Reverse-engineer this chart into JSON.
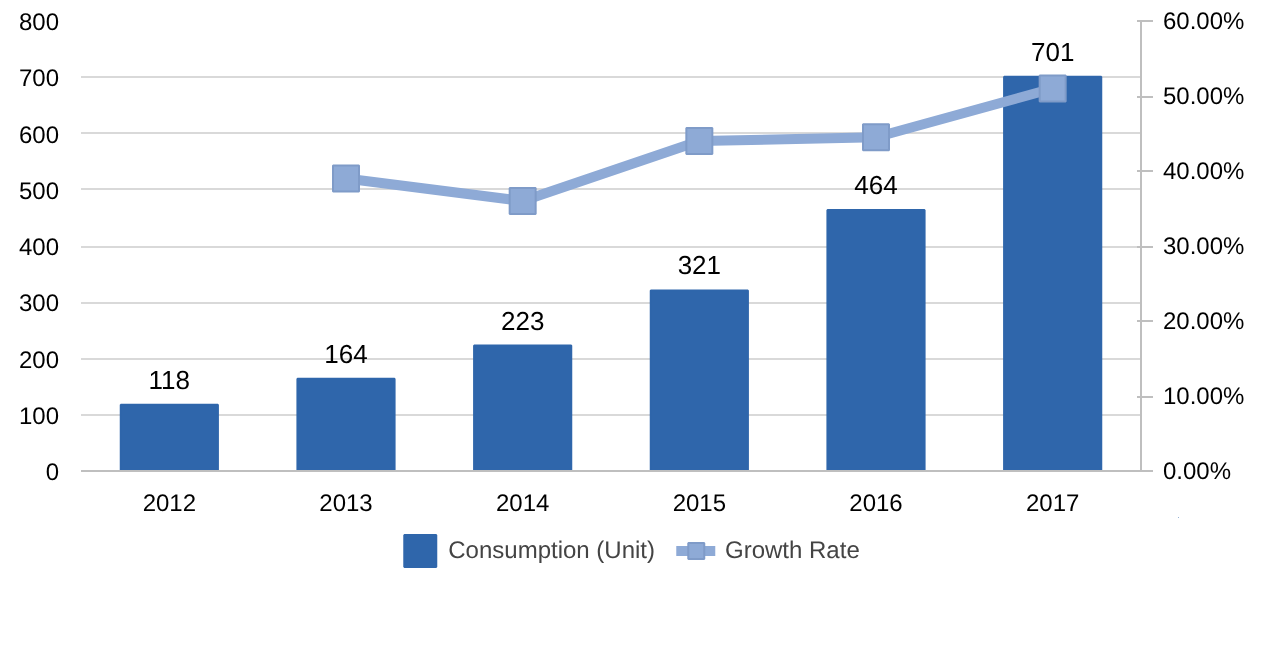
{
  "chart_data": {
    "type": "bar",
    "categories": [
      "2012",
      "2013",
      "2014",
      "2015",
      "2016",
      "2017"
    ],
    "series": [
      {
        "name": "Consumption (Unit)",
        "color": "#2f66ab",
        "values": [
          118,
          164,
          223,
          321,
          464,
          701
        ],
        "value_labels": [
          "118",
          "164",
          "223",
          "321",
          "464",
          "701"
        ]
      },
      {
        "name": "Growth Rate",
        "type": "line",
        "axis": "y2",
        "color": "#8eaad6",
        "marker": "square",
        "values": [
          null,
          39.0,
          36.0,
          44.0,
          44.5,
          51.0
        ]
      }
    ],
    "ylim": [
      0,
      800
    ],
    "yticks": [
      0,
      100,
      200,
      300,
      400,
      500,
      600,
      700,
      800
    ],
    "y2lim": [
      0,
      60
    ],
    "y2ticks": [
      {
        "value": 0,
        "label": "0.00%"
      },
      {
        "value": 10,
        "label": "10.00%"
      },
      {
        "value": 20,
        "label": "20.00%"
      },
      {
        "value": 30,
        "label": "30.00%"
      },
      {
        "value": 40,
        "label": "40.00%"
      },
      {
        "value": 50,
        "label": "50.00%"
      },
      {
        "value": 60,
        "label": "60.00%"
      }
    ],
    "grid": "y",
    "legend": "bottom"
  }
}
